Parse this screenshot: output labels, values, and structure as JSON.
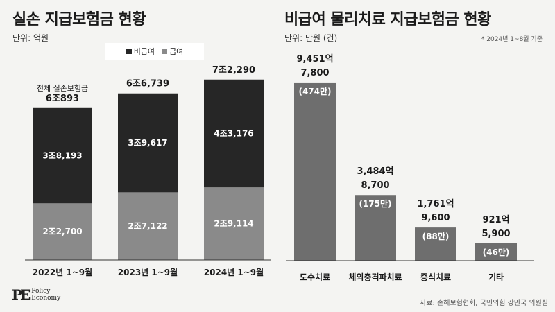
{
  "left": {
    "title": "실손 지급보험금 현황",
    "unit": "단위: 억원",
    "legend": [
      {
        "label": "비급여",
        "color": "#262626"
      },
      {
        "label": "급여",
        "color": "#8a8a8a"
      }
    ]
  },
  "right": {
    "title": "비급여 물리치료 지급보험금 현황",
    "unit": "단위: 만원 (건)",
    "note": "* 2024년 1~8월 기준"
  },
  "footer": {
    "logo_line1": "Policy",
    "logo_line2": "Economy",
    "source": "자료: 손해보험협회, 국민의힘 강민국 의원실"
  },
  "chart_data": [
    {
      "type": "bar",
      "stacked": true,
      "categories": [
        "2022년 1~9월",
        "2023년 1~9월",
        "2024년 1~9월"
      ],
      "series": [
        {
          "name": "급여",
          "values": [
            22700,
            27122,
            29114
          ],
          "labels": [
            "2조2,700",
            "2조7,122",
            "2조9,114"
          ],
          "color": "#8a8a8a"
        },
        {
          "name": "비급여",
          "values": [
            38193,
            39617,
            43176
          ],
          "labels": [
            "3조8,193",
            "3조9,617",
            "4조3,176"
          ],
          "color": "#262626"
        }
      ],
      "totals": [
        60893,
        66739,
        72290
      ],
      "total_labels": [
        "6조893",
        "6조6,739",
        "7조2,290"
      ],
      "annotation": "전체 실손보험금",
      "ylim": [
        0,
        80000
      ]
    },
    {
      "type": "bar",
      "categories": [
        "도수치료",
        "체외충격파치료",
        "증식치료",
        "기타"
      ],
      "values": [
        9451,
        3484,
        1761,
        921
      ],
      "value_labels": [
        "9,451억",
        "3,484억",
        "1,761억",
        "921억"
      ],
      "per_case_labels": [
        "7,800",
        "8,700",
        "9,600",
        "5,900"
      ],
      "count_labels": [
        "(474만)",
        "(175만)",
        "(88만)",
        "(46만)"
      ],
      "color": "#6e6e6e",
      "ylim": [
        0,
        10000
      ]
    }
  ]
}
